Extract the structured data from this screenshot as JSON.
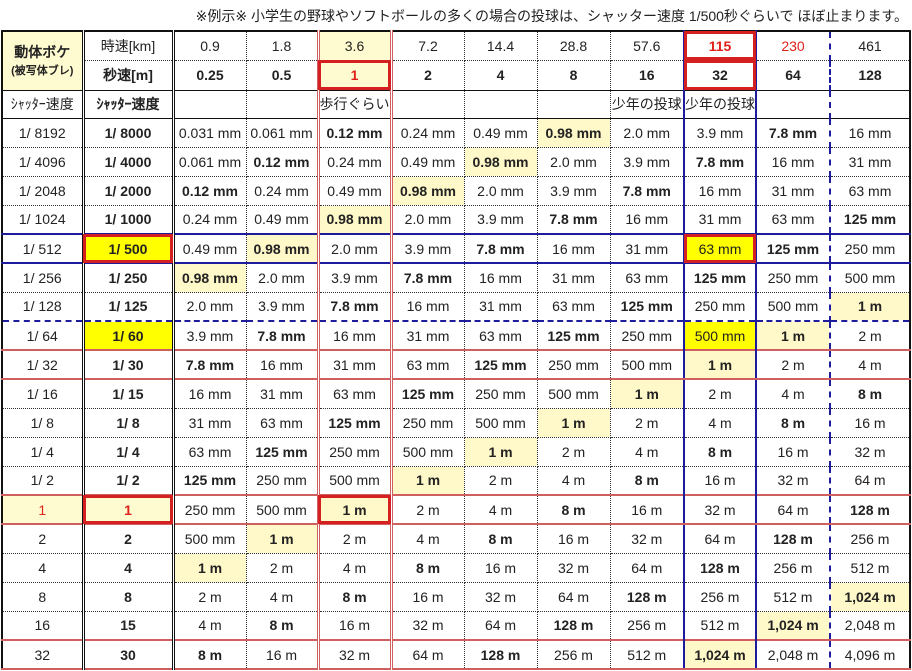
{
  "title": "※例示※ 小学生の野球やソフトボールの多くの場合の投球は、シャッター速度 1/500秒ぐらいで ほぼ止まります。",
  "header": {
    "corner_main": "動体ボケ",
    "corner_sub": "(被写体ブレ)",
    "kmh_label": "時速[km]",
    "ms_label": "秒速[m]",
    "kmh": [
      "0.9",
      "1.8",
      "3.6",
      "7.2",
      "14.4",
      "28.8",
      "57.6",
      "115",
      "230",
      "461"
    ],
    "ms": [
      "0.25",
      "0.5",
      "1",
      "2",
      "4",
      "8",
      "16",
      "32",
      "64",
      "128"
    ],
    "shutter_label_small": "ｼｬｯﾀｰ速度",
    "shutter_label": "ｼｬｯﾀｰ速度",
    "notes": [
      "",
      "",
      "歩行ぐらい",
      "",
      "",
      "",
      "少年の投球",
      "少年の投球",
      "",
      ""
    ]
  },
  "colors": {
    "highlight_red": "#e0201a",
    "blue": "#1b1ba8",
    "yellow": "#ffff00",
    "light_yellow": "#fffbd0"
  },
  "rows": [
    {
      "exact": "1/ 8192",
      "shutter": "1/ 8000",
      "cells": [
        [
          "0.031 mm",
          ""
        ],
        [
          "0.061 mm",
          ""
        ],
        [
          "0.12 mm",
          "b"
        ],
        [
          "0.24 mm",
          ""
        ],
        [
          "0.49 mm",
          ""
        ],
        [
          "0.98 mm",
          "h"
        ],
        [
          "2.0 mm",
          ""
        ],
        [
          "3.9 mm",
          ""
        ],
        [
          "7.8 mm",
          "b"
        ],
        [
          "16 mm",
          ""
        ]
      ]
    },
    {
      "exact": "1/ 4096",
      "shutter": "1/ 4000",
      "cells": [
        [
          "0.061 mm",
          ""
        ],
        [
          "0.12 mm",
          "b"
        ],
        [
          "0.24 mm",
          ""
        ],
        [
          "0.49 mm",
          ""
        ],
        [
          "0.98 mm",
          "h"
        ],
        [
          "2.0 mm",
          ""
        ],
        [
          "3.9 mm",
          ""
        ],
        [
          "7.8 mm",
          "b"
        ],
        [
          "16 mm",
          ""
        ],
        [
          "31 mm",
          ""
        ]
      ]
    },
    {
      "exact": "1/ 2048",
      "shutter": "1/ 2000",
      "cells": [
        [
          "0.12 mm",
          "b"
        ],
        [
          "0.24 mm",
          ""
        ],
        [
          "0.49 mm",
          ""
        ],
        [
          "0.98 mm",
          "h"
        ],
        [
          "2.0 mm",
          ""
        ],
        [
          "3.9 mm",
          ""
        ],
        [
          "7.8 mm",
          "b"
        ],
        [
          "16 mm",
          ""
        ],
        [
          "31 mm",
          ""
        ],
        [
          "63 mm",
          ""
        ]
      ]
    },
    {
      "exact": "1/ 1024",
      "shutter": "1/ 1000",
      "cells": [
        [
          "0.24 mm",
          ""
        ],
        [
          "0.49 mm",
          ""
        ],
        [
          "0.98 mm",
          "h"
        ],
        [
          "2.0 mm",
          ""
        ],
        [
          "3.9 mm",
          ""
        ],
        [
          "7.8 mm",
          "b"
        ],
        [
          "16 mm",
          ""
        ],
        [
          "31 mm",
          ""
        ],
        [
          "63 mm",
          ""
        ],
        [
          "125 mm",
          "b"
        ]
      ]
    },
    {
      "exact": "1/ 512",
      "shutter": "1/ 500",
      "cells": [
        [
          "0.49 mm",
          ""
        ],
        [
          "0.98 mm",
          "h"
        ],
        [
          "2.0 mm",
          ""
        ],
        [
          "3.9 mm",
          ""
        ],
        [
          "7.8 mm",
          "b"
        ],
        [
          "16 mm",
          ""
        ],
        [
          "31 mm",
          ""
        ],
        [
          "63 mm",
          "y"
        ],
        [
          "125 mm",
          "b"
        ],
        [
          "250 mm",
          ""
        ]
      ]
    },
    {
      "exact": "1/ 256",
      "shutter": "1/ 250",
      "cells": [
        [
          "0.98 mm",
          "h"
        ],
        [
          "2.0 mm",
          ""
        ],
        [
          "3.9 mm",
          ""
        ],
        [
          "7.8 mm",
          "b"
        ],
        [
          "16 mm",
          ""
        ],
        [
          "31 mm",
          ""
        ],
        [
          "63 mm",
          ""
        ],
        [
          "125 mm",
          "b"
        ],
        [
          "250 mm",
          ""
        ],
        [
          "500 mm",
          ""
        ]
      ]
    },
    {
      "exact": "1/ 128",
      "shutter": "1/ 125",
      "cells": [
        [
          "2.0 mm",
          ""
        ],
        [
          "3.9 mm",
          ""
        ],
        [
          "7.8 mm",
          "b"
        ],
        [
          "16 mm",
          ""
        ],
        [
          "31 mm",
          ""
        ],
        [
          "63 mm",
          ""
        ],
        [
          "125 mm",
          "b"
        ],
        [
          "250 mm",
          ""
        ],
        [
          "500 mm",
          ""
        ],
        [
          "1 m",
          "h"
        ]
      ]
    },
    {
      "exact": "1/ 64",
      "shutter": "1/ 60",
      "cells": [
        [
          "3.9 mm",
          ""
        ],
        [
          "7.8 mm",
          "b"
        ],
        [
          "16 mm",
          ""
        ],
        [
          "31 mm",
          ""
        ],
        [
          "63 mm",
          ""
        ],
        [
          "125 mm",
          "b"
        ],
        [
          "250 mm",
          ""
        ],
        [
          "500 mm",
          "y"
        ],
        [
          "1 m",
          "h"
        ],
        [
          "2 m",
          "m"
        ]
      ]
    },
    {
      "exact": "1/ 32",
      "shutter": "1/ 30",
      "cells": [
        [
          "7.8 mm",
          "b"
        ],
        [
          "16 mm",
          ""
        ],
        [
          "31 mm",
          ""
        ],
        [
          "63 mm",
          ""
        ],
        [
          "125 mm",
          "b"
        ],
        [
          "250 mm",
          ""
        ],
        [
          "500 mm",
          ""
        ],
        [
          "1 m",
          "h"
        ],
        [
          "2 m",
          "m"
        ],
        [
          "4 m",
          "m"
        ]
      ]
    },
    {
      "exact": "1/ 16",
      "shutter": "1/ 15",
      "cells": [
        [
          "16 mm",
          ""
        ],
        [
          "31 mm",
          ""
        ],
        [
          "63 mm",
          ""
        ],
        [
          "125 mm",
          "b"
        ],
        [
          "250 mm",
          ""
        ],
        [
          "500 mm",
          ""
        ],
        [
          "1 m",
          "h"
        ],
        [
          "2 m",
          "m"
        ],
        [
          "4 m",
          "m"
        ],
        [
          "8 m",
          "mb"
        ]
      ]
    },
    {
      "exact": "1/ 8",
      "shutter": "1/ 8",
      "cells": [
        [
          "31 mm",
          ""
        ],
        [
          "63 mm",
          ""
        ],
        [
          "125 mm",
          "b"
        ],
        [
          "250 mm",
          ""
        ],
        [
          "500 mm",
          ""
        ],
        [
          "1 m",
          "h"
        ],
        [
          "2 m",
          "m"
        ],
        [
          "4 m",
          "m"
        ],
        [
          "8 m",
          "mb"
        ],
        [
          "16 m",
          "m"
        ]
      ]
    },
    {
      "exact": "1/ 4",
      "shutter": "1/ 4",
      "cells": [
        [
          "63 mm",
          ""
        ],
        [
          "125 mm",
          "b"
        ],
        [
          "250 mm",
          ""
        ],
        [
          "500 mm",
          ""
        ],
        [
          "1 m",
          "h"
        ],
        [
          "2 m",
          "m"
        ],
        [
          "4 m",
          "m"
        ],
        [
          "8 m",
          "mb"
        ],
        [
          "16 m",
          "m"
        ],
        [
          "32 m",
          "m"
        ]
      ]
    },
    {
      "exact": "1/ 2",
      "shutter": "1/ 2",
      "cells": [
        [
          "125 mm",
          "b"
        ],
        [
          "250 mm",
          ""
        ],
        [
          "500 mm",
          ""
        ],
        [
          "1 m",
          "h"
        ],
        [
          "2 m",
          "m"
        ],
        [
          "4 m",
          "m"
        ],
        [
          "8 m",
          "mb"
        ],
        [
          "16 m",
          "m"
        ],
        [
          "32 m",
          "m"
        ],
        [
          "64 m",
          "m"
        ]
      ]
    },
    {
      "exact": "1",
      "shutter": "1",
      "cells": [
        [
          "250 mm",
          ""
        ],
        [
          "500 mm",
          ""
        ],
        [
          "1 m",
          "h"
        ],
        [
          "2 m",
          "m"
        ],
        [
          "4 m",
          "m"
        ],
        [
          "8 m",
          "mb"
        ],
        [
          "16 m",
          "m"
        ],
        [
          "32 m",
          "m"
        ],
        [
          "64 m",
          "m"
        ],
        [
          "128 m",
          "mb"
        ]
      ]
    },
    {
      "exact": "2",
      "shutter": "2",
      "cells": [
        [
          "500 mm",
          ""
        ],
        [
          "1 m",
          "h"
        ],
        [
          "2 m",
          "m"
        ],
        [
          "4 m",
          "m"
        ],
        [
          "8 m",
          "mb"
        ],
        [
          "16 m",
          "m"
        ],
        [
          "32 m",
          "m"
        ],
        [
          "64 m",
          "m"
        ],
        [
          "128 m",
          "mb"
        ],
        [
          "256 m",
          "m"
        ]
      ]
    },
    {
      "exact": "4",
      "shutter": "4",
      "cells": [
        [
          "1 m",
          "h"
        ],
        [
          "2 m",
          "m"
        ],
        [
          "4 m",
          "m"
        ],
        [
          "8 m",
          "mb"
        ],
        [
          "16 m",
          "m"
        ],
        [
          "32 m",
          "m"
        ],
        [
          "64 m",
          "m"
        ],
        [
          "128 m",
          "mb"
        ],
        [
          "256 m",
          "m"
        ],
        [
          "512 m",
          "m"
        ]
      ]
    },
    {
      "exact": "8",
      "shutter": "8",
      "cells": [
        [
          "2 m",
          "m"
        ],
        [
          "4 m",
          "m"
        ],
        [
          "8 m",
          "mb"
        ],
        [
          "16 m",
          "m"
        ],
        [
          "32 m",
          "m"
        ],
        [
          "64 m",
          "m"
        ],
        [
          "128 m",
          "mb"
        ],
        [
          "256 m",
          "m"
        ],
        [
          "512 m",
          "m"
        ],
        [
          "1,024 m",
          "h"
        ]
      ]
    },
    {
      "exact": "16",
      "shutter": "15",
      "cells": [
        [
          "4 m",
          "m"
        ],
        [
          "8 m",
          "mb"
        ],
        [
          "16 m",
          "m"
        ],
        [
          "32 m",
          "m"
        ],
        [
          "64 m",
          "m"
        ],
        [
          "128 m",
          "mb"
        ],
        [
          "256 m",
          "m"
        ],
        [
          "512 m",
          "m"
        ],
        [
          "1,024 m",
          "h"
        ],
        [
          "2,048 m",
          "m"
        ]
      ]
    },
    {
      "exact": "32",
      "shutter": "30",
      "cells": [
        [
          "8 m",
          "mb"
        ],
        [
          "16 m",
          "m"
        ],
        [
          "32 m",
          "m"
        ],
        [
          "64 m",
          "m"
        ],
        [
          "128 m",
          "mb"
        ],
        [
          "256 m",
          "m"
        ],
        [
          "512 m",
          "m"
        ],
        [
          "1,024 m",
          "h"
        ],
        [
          "2,048 m",
          "m"
        ],
        [
          "4,096 m",
          "m"
        ]
      ]
    }
  ]
}
